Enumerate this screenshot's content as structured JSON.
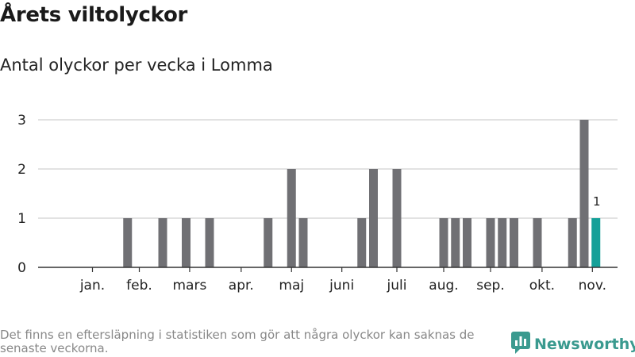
{
  "title": "Årets viltolyckor",
  "subtitle": "Antal olyckor per vecka i Lomma",
  "footnote": "Det finns en eftersläpning i statistiken som gör att några olyckor kan saknas de senaste veckorna.",
  "brand": {
    "name": "Newsworthy",
    "icon": "newsworthy-logo-icon",
    "color": "#3a9a8f"
  },
  "colors": {
    "bar": "#707074",
    "highlight": "#14a098",
    "grid": "#d9d9d9"
  },
  "chart_data": {
    "type": "bar",
    "title": "",
    "xlabel": "",
    "ylabel": "",
    "ylim": [
      0,
      3
    ],
    "yticks": [
      0,
      1,
      2,
      3
    ],
    "x": [
      1,
      2,
      3,
      4,
      5,
      6,
      7,
      8,
      9,
      10,
      11,
      12,
      13,
      14,
      15,
      16,
      17,
      18,
      19,
      20,
      21,
      22,
      23,
      24,
      25,
      26,
      27,
      28,
      29,
      30,
      31,
      32,
      33,
      34,
      35,
      36,
      37,
      38,
      39,
      40,
      41,
      42,
      43,
      44,
      45,
      46
    ],
    "values": [
      0,
      0,
      0,
      0,
      0,
      1,
      0,
      0,
      1,
      0,
      1,
      0,
      1,
      0,
      0,
      0,
      0,
      1,
      0,
      2,
      1,
      0,
      0,
      0,
      0,
      1,
      2,
      0,
      2,
      0,
      0,
      0,
      1,
      1,
      1,
      0,
      1,
      1,
      1,
      0,
      1,
      0,
      0,
      1,
      3,
      1
    ],
    "highlight_index": 45,
    "highlight_label": "1",
    "month_labels": [
      {
        "label": "jan.",
        "week": 3
      },
      {
        "label": "feb.",
        "week": 7
      },
      {
        "label": "mars",
        "week": 11.3
      },
      {
        "label": "apr.",
        "week": 15.7
      },
      {
        "label": "maj",
        "week": 20
      },
      {
        "label": "juni",
        "week": 24.3
      },
      {
        "label": "juli",
        "week": 29
      },
      {
        "label": "aug.",
        "week": 33
      },
      {
        "label": "sep.",
        "week": 37
      },
      {
        "label": "okt.",
        "week": 41.4
      },
      {
        "label": "nov.",
        "week": 45.7
      }
    ]
  }
}
